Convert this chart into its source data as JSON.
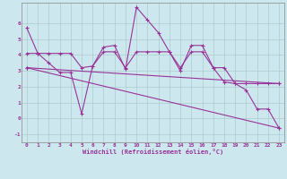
{
  "xlabel": "Windchill (Refroidissement éolien,°C)",
  "background_color": "#cce8ee",
  "grid_color": "#aacccc",
  "line_color": "#993399",
  "xlim": [
    -0.5,
    23.5
  ],
  "ylim": [
    -1.5,
    7.3
  ],
  "xticks": [
    0,
    1,
    2,
    3,
    4,
    5,
    6,
    7,
    8,
    9,
    10,
    11,
    12,
    13,
    14,
    15,
    16,
    17,
    18,
    19,
    20,
    21,
    22,
    23
  ],
  "yticks": [
    -1,
    0,
    1,
    2,
    3,
    4,
    5,
    6
  ],
  "series1_x": [
    0,
    1,
    2,
    3,
    4,
    5,
    6,
    7,
    8,
    9,
    10,
    11,
    12,
    13,
    14,
    15,
    16,
    17,
    18,
    19,
    20,
    21,
    22,
    23
  ],
  "series1_y": [
    5.7,
    4.1,
    3.5,
    2.9,
    2.9,
    0.3,
    3.3,
    4.5,
    4.6,
    3.1,
    7.0,
    6.2,
    5.4,
    4.2,
    3.0,
    4.6,
    4.6,
    3.2,
    3.2,
    2.2,
    1.8,
    0.6,
    0.6,
    -0.6
  ],
  "series2_x": [
    0,
    1,
    2,
    3,
    4,
    5,
    6,
    7,
    8,
    9,
    10,
    11,
    12,
    13,
    14,
    15,
    16,
    17,
    18,
    19,
    20,
    21,
    22,
    23
  ],
  "series2_y": [
    4.1,
    4.1,
    4.1,
    4.1,
    4.1,
    3.2,
    3.3,
    4.2,
    4.2,
    3.2,
    4.2,
    4.2,
    4.2,
    4.2,
    3.2,
    4.2,
    4.2,
    3.2,
    2.3,
    2.2,
    2.2,
    2.2,
    2.2,
    2.2
  ],
  "series3_x": [
    0,
    23
  ],
  "series3_y": [
    3.2,
    2.2
  ],
  "series4_x": [
    0,
    23
  ],
  "series4_y": [
    3.2,
    -0.6
  ],
  "tick_fontsize": 4.5,
  "xlabel_fontsize": 5.0,
  "marker_size": 2.5,
  "line_width": 0.8
}
